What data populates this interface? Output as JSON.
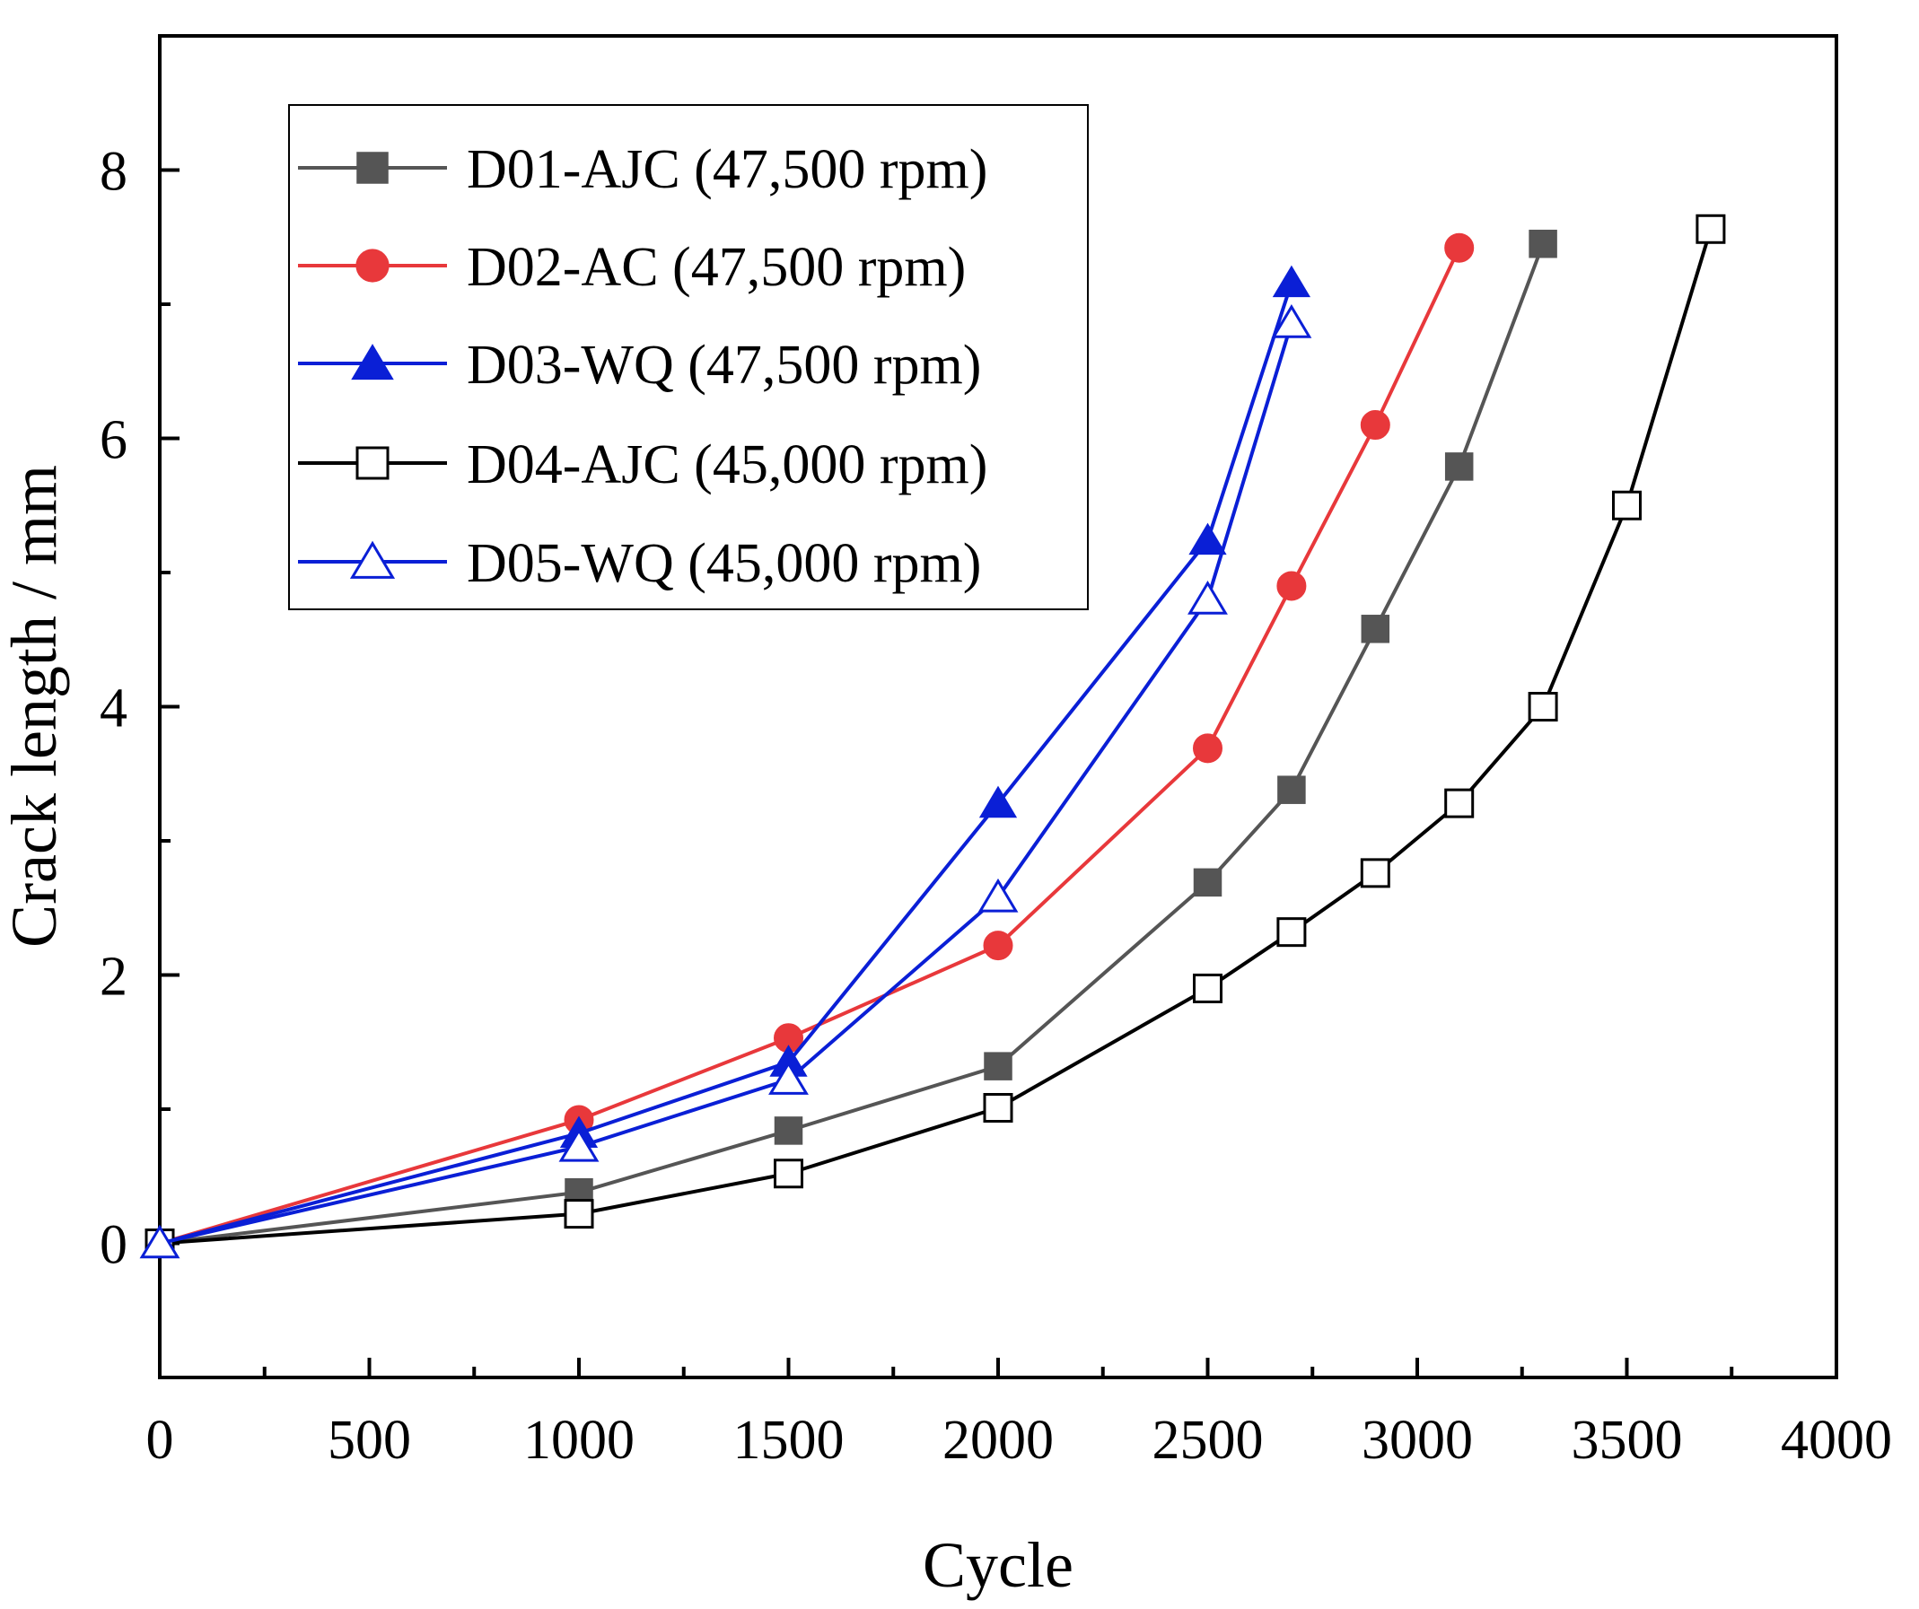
{
  "chart_data": {
    "type": "line",
    "title": "",
    "xlabel": "Cycle",
    "ylabel": "Crack length / mm",
    "xlim": [
      0,
      4000
    ],
    "ylim": [
      -1,
      9
    ],
    "xticks": [
      0,
      500,
      1000,
      1500,
      2000,
      2500,
      3000,
      3500,
      4000
    ],
    "xticks_minor": [
      250,
      750,
      1250,
      1750,
      2250,
      2750,
      3250,
      3750
    ],
    "yticks": [
      0,
      2,
      4,
      6,
      8
    ],
    "yticks_minor": [
      -1,
      1,
      3,
      5,
      7,
      9
    ],
    "grid": false,
    "legend_position": "top-left",
    "series": [
      {
        "name": "D01-AJC (47,500 rpm)",
        "color": "#555555",
        "marker": "square-filled",
        "x": [
          0,
          1000,
          1500,
          2000,
          2500,
          2700,
          2900,
          3100,
          3300
        ],
        "y": [
          0,
          0.38,
          0.84,
          1.32,
          2.69,
          3.38,
          4.58,
          5.79,
          7.45
        ]
      },
      {
        "name": "D02-AC (47,500 rpm)",
        "color": "#e8383b",
        "marker": "circle-filled",
        "x": [
          0,
          1000,
          1500,
          2000,
          2500,
          2700,
          2900,
          3100
        ],
        "y": [
          0,
          0.92,
          1.53,
          2.22,
          3.69,
          4.9,
          6.1,
          7.42
        ]
      },
      {
        "name": "D03-WQ (47,500 rpm)",
        "color": "#0a1fd6",
        "marker": "triangle-filled",
        "x": [
          0,
          1000,
          1500,
          2000,
          2500,
          2700
        ],
        "y": [
          0,
          0.82,
          1.35,
          3.28,
          5.24,
          7.16
        ]
      },
      {
        "name": "D04-AJC (45,000 rpm)",
        "color": "#000000",
        "marker": "square-open",
        "x": [
          0,
          1000,
          1500,
          2000,
          2500,
          2700,
          2900,
          3100,
          3300,
          3500,
          3700
        ],
        "y": [
          0,
          0.22,
          0.52,
          1.01,
          1.9,
          2.32,
          2.76,
          3.28,
          4.0,
          5.5,
          7.56
        ]
      },
      {
        "name": "D05-WQ (45,000 rpm)",
        "color": "#0a1fd6",
        "marker": "triangle-open",
        "x": [
          0,
          1000,
          1500,
          2000,
          2500,
          2700
        ],
        "y": [
          0,
          0.72,
          1.22,
          2.58,
          4.8,
          6.86
        ]
      }
    ]
  }
}
